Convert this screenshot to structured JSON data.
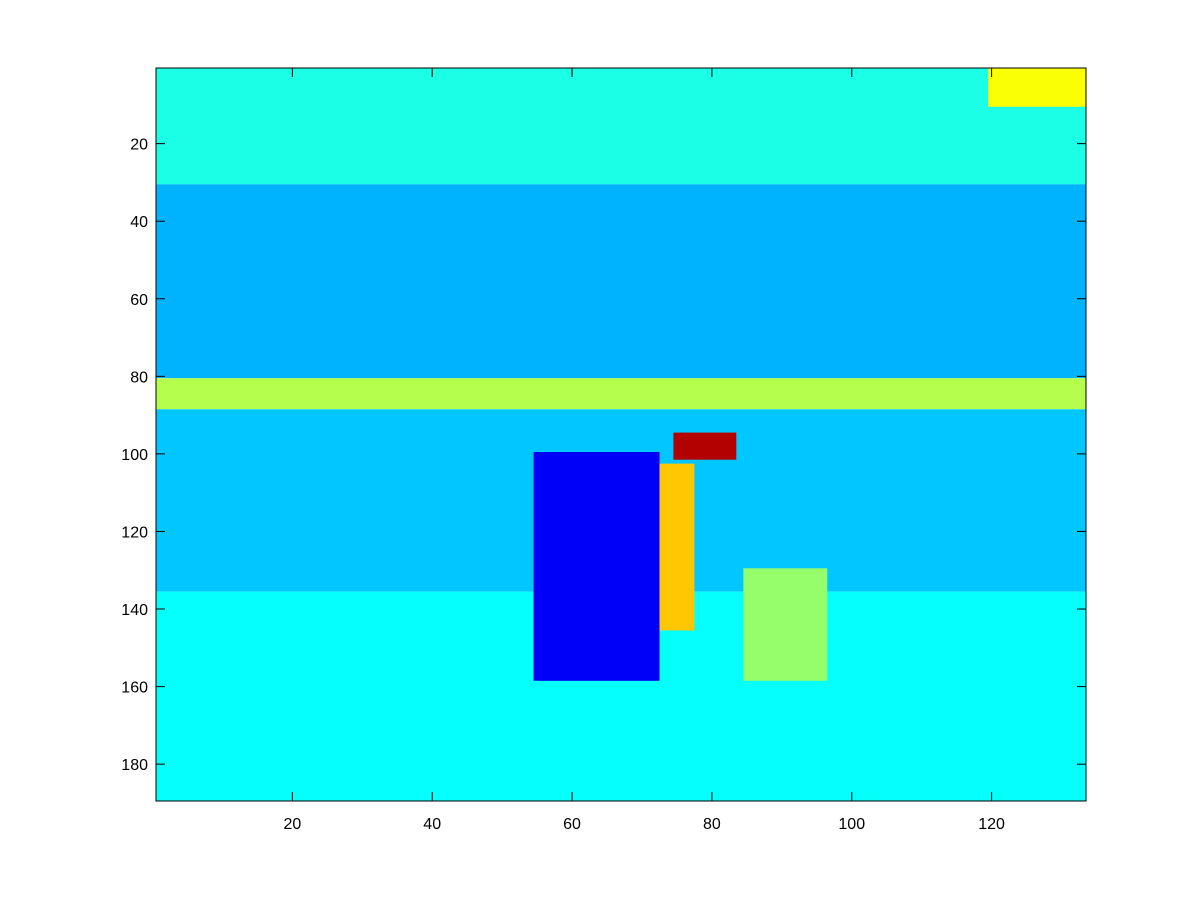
{
  "colors": {
    "background": "#ffffff",
    "axes": "#000000",
    "colormap": "jet"
  },
  "chart_data": {
    "type": "heatmap",
    "title": "",
    "xlabel": "",
    "ylabel": "",
    "colormap": "jet",
    "y_direction": "reversed",
    "xlim": [
      0.5,
      133.5
    ],
    "ylim": [
      0.5,
      189.5
    ],
    "grid": false,
    "xticks": [
      20,
      40,
      60,
      80,
      100,
      120
    ],
    "yticks": [
      20,
      40,
      60,
      80,
      100,
      120,
      140,
      160,
      180
    ],
    "color_regions": [
      {
        "region": "sky, upper band",
        "rows": [
          1,
          30
        ],
        "cols": [
          1,
          133
        ],
        "level": 0.4
      },
      {
        "region": "sky glow, top-right corner",
        "rows": [
          1,
          10
        ],
        "cols": [
          120,
          133
        ],
        "level": 0.62
      },
      {
        "region": "sky, lower band",
        "rows": [
          31,
          80
        ],
        "cols": [
          1,
          133
        ],
        "level": 0.3
      },
      {
        "region": "horizon line",
        "rows": [
          81,
          88
        ],
        "cols": [
          1,
          133
        ],
        "level": 0.55
      },
      {
        "region": "sea, mid rows",
        "rows": [
          89,
          135
        ],
        "cols": [
          1,
          133
        ],
        "level": 0.32
      },
      {
        "region": "sea, foreground rows",
        "rows": [
          136,
          189
        ],
        "cols": [
          1,
          133
        ],
        "level": 0.38
      },
      {
        "region": "figure head (hot spot)",
        "rows": [
          95,
          101
        ],
        "cols": [
          75,
          83
        ],
        "level": 0.95
      },
      {
        "region": "figure torso",
        "rows": [
          103,
          145
        ],
        "cols": [
          64,
          77
        ],
        "level": 0.68
      },
      {
        "region": "figure outline (shadow)",
        "rows": [
          100,
          158
        ],
        "cols": [
          55,
          72
        ],
        "level": 0.12
      },
      {
        "region": "small figure",
        "rows": [
          130,
          158
        ],
        "cols": [
          85,
          96
        ],
        "level": 0.52
      }
    ]
  }
}
